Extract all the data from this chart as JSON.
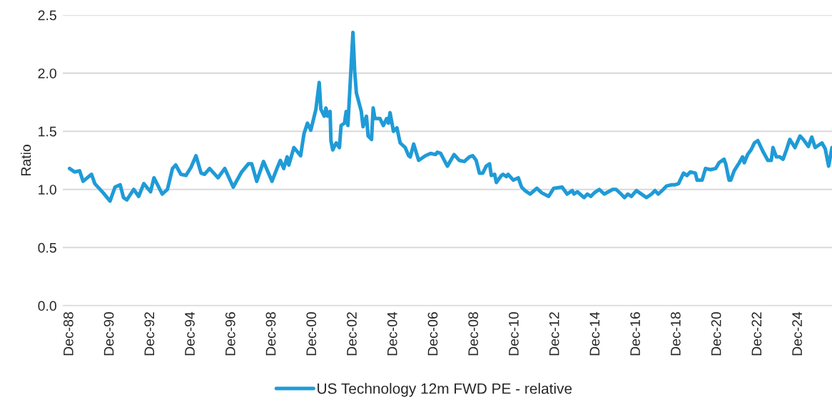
{
  "chart_data": {
    "type": "line",
    "ylabel": "Ratio",
    "legend": "bottom",
    "grid": "y",
    "marker": "none",
    "line_style": "solid",
    "xlim": [
      "1988-08",
      "2026-08"
    ],
    "ylim": [
      0,
      2.5
    ],
    "yticks": [
      {
        "value": 0,
        "label": "0.0"
      },
      0.5,
      {
        "value": 1,
        "label": "1.0"
      },
      1.5,
      {
        "value": 2,
        "label": "2.0"
      },
      2.5
    ],
    "xticks": [
      {
        "value": "1988-12",
        "label": "Dec-88"
      },
      {
        "value": "1990-12",
        "label": "Dec-90"
      },
      {
        "value": "1992-12",
        "label": "Dec-92"
      },
      {
        "value": "1994-12",
        "label": "Dec-94"
      },
      {
        "value": "1996-12",
        "label": "Dec-96"
      },
      {
        "value": "1998-12",
        "label": "Dec-98"
      },
      {
        "value": "2000-12",
        "label": "Dec-00"
      },
      {
        "value": "2002-12",
        "label": "Dec-02"
      },
      {
        "value": "2004-12",
        "label": "Dec-04"
      },
      {
        "value": "2006-12",
        "label": "Dec-06"
      },
      {
        "value": "2008-12",
        "label": "Dec-08"
      },
      {
        "value": "2010-12",
        "label": "Dec-10"
      },
      {
        "value": "2012-12",
        "label": "Dec-12"
      },
      {
        "value": "2014-12",
        "label": "Dec-14"
      },
      {
        "value": "2016-12",
        "label": "Dec-16"
      },
      {
        "value": "2018-12",
        "label": "Dec-18"
      },
      {
        "value": "2020-12",
        "label": "Dec-20"
      },
      {
        "value": "2022-12",
        "label": "Dec-22"
      },
      {
        "value": "2024-12",
        "label": "Dec-24"
      }
    ],
    "series": [
      {
        "name": "US Technology 12m FWD PE - relative",
        "color": "#1f9bd7",
        "x": [
          "1988-12",
          "1989-03",
          "1989-06",
          "1989-08",
          "1990-01",
          "1990-03",
          "1990-08",
          "1990-12",
          "1991-03",
          "1991-06",
          "1991-08",
          "1991-10",
          "1992-02",
          "1992-05",
          "1992-08",
          "1992-12",
          "1993-02",
          "1993-07",
          "1993-10",
          "1994-01",
          "1994-03",
          "1994-06",
          "1994-09",
          "1994-12",
          "1995-03",
          "1995-06",
          "1995-08",
          "1995-11",
          "1996-04",
          "1996-08",
          "1997-01",
          "1997-06",
          "1997-10",
          "1997-12",
          "1998-03",
          "1998-07",
          "1998-12",
          "1999-03",
          "1999-05",
          "1999-07",
          "1999-09",
          "1999-10",
          "2000-01",
          "2000-05",
          "2000-07",
          "2000-09",
          "2000-11",
          "2001-02",
          "2001-04",
          "2001-05",
          "2001-07",
          "2001-08",
          "2001-09",
          "2001-10-15",
          "2001-10-30",
          "2001-12",
          "2002-02",
          "2002-04",
          "2002-05",
          "2002-07",
          "2002-08",
          "2002-09",
          "2002-12",
          "2003-01",
          "2003-02",
          "2003-05",
          "2003-06",
          "2003-08",
          "2003-09",
          "2003-11",
          "2003-12",
          "2004-01",
          "2004-04",
          "2004-06",
          "2004-08",
          "2004-09",
          "2004-10",
          "2004-12",
          "2005-02",
          "2005-04",
          "2005-07",
          "2005-09",
          "2005-10",
          "2005-12",
          "2006-03",
          "2006-07",
          "2006-10",
          "2007-01",
          "2007-02",
          "2007-04",
          "2007-08",
          "2007-12",
          "2008-03",
          "2008-06",
          "2008-09",
          "2008-11",
          "2009-01",
          "2009-03",
          "2009-05",
          "2009-07",
          "2009-09",
          "2009-10",
          "2009-12",
          "2010-01",
          "2010-04",
          "2010-05",
          "2010-07",
          "2010-08",
          "2010-11",
          "2011-02",
          "2011-04",
          "2011-06",
          "2011-09",
          "2012-01",
          "2012-04",
          "2012-08",
          "2012-11",
          "2013-04",
          "2013-07",
          "2013-10",
          "2013-11",
          "2014-01",
          "2014-05",
          "2014-07",
          "2014-09",
          "2014-11",
          "2015-02",
          "2015-05",
          "2015-10",
          "2015-12",
          "2016-03",
          "2016-05",
          "2016-07",
          "2016-09",
          "2016-12",
          "2017-04",
          "2017-06",
          "2017-09",
          "2017-11",
          "2018-01",
          "2018-04",
          "2018-06",
          "2018-09",
          "2018-11",
          "2019-01",
          "2019-04",
          "2019-06",
          "2019-08",
          "2019-11",
          "2019-12",
          "2020-03",
          "2020-05",
          "2020-08",
          "2020-11",
          "2021-01",
          "2021-04",
          "2021-05",
          "2021-07",
          "2021-08",
          "2021-10",
          "2022-01",
          "2022-03",
          "2022-04",
          "2022-06",
          "2022-08",
          "2022-10",
          "2022-12",
          "2023-03",
          "2023-06",
          "2023-08",
          "2023-09",
          "2023-11",
          "2024-01",
          "2024-03",
          "2024-05",
          "2024-07",
          "2024-10",
          "2025-01",
          "2025-03",
          "2025-06",
          "2025-08",
          "2025-10",
          "2026-02",
          "2026-04",
          "2026-06",
          "2026-08"
        ],
        "values": [
          1.18,
          1.15,
          1.16,
          1.07,
          1.13,
          1.05,
          0.97,
          0.9,
          1.02,
          1.04,
          0.93,
          0.91,
          1.0,
          0.94,
          1.05,
          0.98,
          1.1,
          0.96,
          1.0,
          1.18,
          1.21,
          1.13,
          1.12,
          1.19,
          1.29,
          1.14,
          1.13,
          1.18,
          1.1,
          1.18,
          1.02,
          1.15,
          1.22,
          1.22,
          1.07,
          1.24,
          1.07,
          1.18,
          1.25,
          1.18,
          1.28,
          1.21,
          1.36,
          1.29,
          1.48,
          1.57,
          1.51,
          1.69,
          1.92,
          1.69,
          1.63,
          1.7,
          1.63,
          1.67,
          1.42,
          1.34,
          1.4,
          1.36,
          1.55,
          1.57,
          1.67,
          1.55,
          2.35,
          2.02,
          1.83,
          1.67,
          1.54,
          1.63,
          1.46,
          1.43,
          1.7,
          1.61,
          1.61,
          1.55,
          1.61,
          1.57,
          1.66,
          1.5,
          1.53,
          1.4,
          1.36,
          1.29,
          1.28,
          1.39,
          1.25,
          1.29,
          1.31,
          1.3,
          1.32,
          1.31,
          1.2,
          1.3,
          1.25,
          1.24,
          1.28,
          1.29,
          1.25,
          1.14,
          1.14,
          1.2,
          1.22,
          1.12,
          1.13,
          1.06,
          1.12,
          1.13,
          1.11,
          1.13,
          1.08,
          1.1,
          1.02,
          0.99,
          0.96,
          1.01,
          0.97,
          0.94,
          1.01,
          1.02,
          0.96,
          0.99,
          0.96,
          0.98,
          0.93,
          0.96,
          0.94,
          0.97,
          1.0,
          0.96,
          1.0,
          1.0,
          0.96,
          0.93,
          0.96,
          0.94,
          0.99,
          0.95,
          0.93,
          0.96,
          0.99,
          0.96,
          1.0,
          1.03,
          1.04,
          1.04,
          1.05,
          1.14,
          1.12,
          1.15,
          1.14,
          1.08,
          1.08,
          1.18,
          1.17,
          1.18,
          1.23,
          1.26,
          1.22,
          1.08,
          1.08,
          1.16,
          1.23,
          1.28,
          1.23,
          1.3,
          1.34,
          1.4,
          1.42,
          1.33,
          1.25,
          1.25,
          1.36,
          1.28,
          1.28,
          1.26,
          1.34,
          1.43,
          1.36,
          1.46,
          1.43,
          1.37,
          1.45,
          1.36,
          1.4,
          1.35,
          1.2,
          1.36
        ]
      }
    ]
  }
}
